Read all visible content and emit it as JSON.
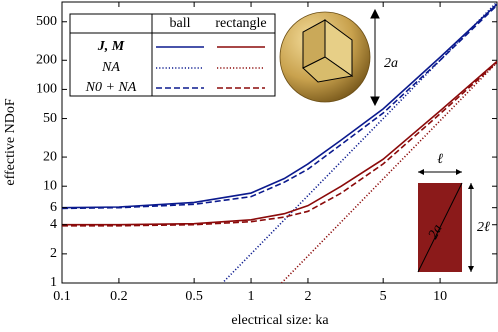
{
  "chart_data": {
    "type": "line",
    "xlabel": "electrical size: ka",
    "ylabel": "effective NDoF",
    "xscale": "log",
    "yscale": "log",
    "xlim": [
      0.1,
      20
    ],
    "ylim": [
      1,
      800
    ],
    "xticks": [
      0.1,
      0.2,
      0.5,
      1,
      2,
      5,
      10
    ],
    "yticks": [
      1,
      2,
      4,
      6,
      10,
      20,
      50,
      100,
      200,
      500
    ],
    "grid": false,
    "legend": {
      "columns": [
        "ball",
        "rectangle"
      ],
      "rows": [
        "J, M",
        "NA",
        "N0 + NA"
      ]
    },
    "series": [
      {
        "name": "J, M",
        "group": "ball",
        "color": "#0b1a8e",
        "dash": "solid",
        "x": [
          0.1,
          0.2,
          0.5,
          1,
          1.5,
          2,
          3,
          5,
          10,
          20
        ],
        "values": [
          6,
          6.1,
          6.8,
          8.5,
          12,
          17,
          30,
          63,
          215,
          760
        ]
      },
      {
        "name": "NA",
        "group": "ball",
        "color": "#0b1a8e",
        "dash": "dotted",
        "x": [
          0.72,
          1,
          2,
          5,
          10,
          20
        ],
        "values": [
          1.04,
          2,
          8,
          50,
          200,
          800
        ]
      },
      {
        "name": "N0 + NA",
        "group": "ball",
        "color": "#0b1a8e",
        "dash": "dashed",
        "x": [
          0.1,
          0.2,
          0.5,
          1,
          1.5,
          2,
          3,
          5,
          10,
          20
        ],
        "values": [
          5.9,
          6,
          6.5,
          7.8,
          11,
          15,
          27,
          57,
          200,
          740
        ]
      },
      {
        "name": "J, M",
        "group": "rectangle",
        "color": "#8b0a0a",
        "dash": "solid",
        "x": [
          0.1,
          0.2,
          0.5,
          1,
          1.5,
          2,
          3,
          5,
          10,
          20
        ],
        "values": [
          4,
          4,
          4.1,
          4.5,
          5.2,
          6.3,
          10,
          19,
          60,
          195
        ]
      },
      {
        "name": "NA",
        "group": "rectangle",
        "color": "#8b0a0a",
        "dash": "dotted",
        "x": [
          1.45,
          2,
          5,
          10,
          20
        ],
        "values": [
          1,
          1.9,
          11.9,
          47.5,
          190
        ]
      },
      {
        "name": "N0 + NA",
        "group": "rectangle",
        "color": "#8b0a0a",
        "dash": "dashed",
        "x": [
          0.1,
          0.2,
          0.5,
          1,
          1.5,
          2,
          3,
          5,
          10,
          20
        ],
        "values": [
          3.9,
          3.9,
          4,
          4.3,
          4.8,
          5.5,
          8.5,
          17,
          56,
          190
        ]
      }
    ],
    "annotations": [
      "2a",
      "ℓ",
      "2ℓ",
      "2a"
    ]
  }
}
